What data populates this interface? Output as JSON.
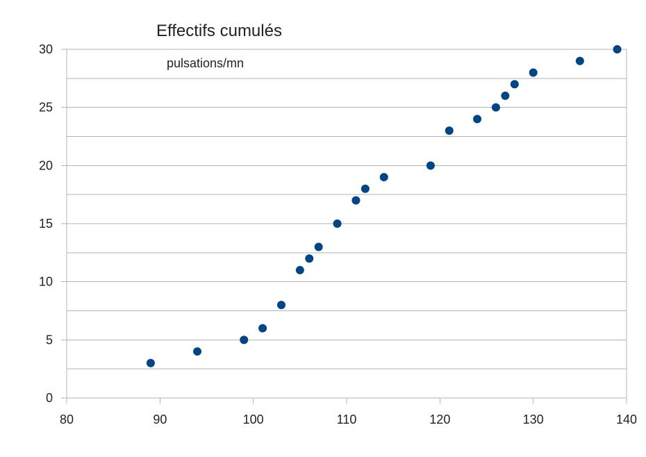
{
  "chart_data": {
    "type": "scatter",
    "title": "Effectifs cumulés",
    "annotation": "pulsations/mn",
    "xlabel": "",
    "ylabel": "",
    "xlim": [
      80,
      140
    ],
    "ylim": [
      0,
      30
    ],
    "xticks": [
      80,
      90,
      100,
      110,
      120,
      130,
      140
    ],
    "yticks": [
      0,
      5,
      10,
      15,
      20,
      25,
      30
    ],
    "grid": "horizontal",
    "legend": "none",
    "marker_color": "#004586",
    "grid_color": "#b3b3b3",
    "axis_color": "#b3b3b3",
    "points": [
      {
        "x": 89,
        "y": 3
      },
      {
        "x": 94,
        "y": 4
      },
      {
        "x": 99,
        "y": 5
      },
      {
        "x": 101,
        "y": 6
      },
      {
        "x": 103,
        "y": 8
      },
      {
        "x": 105,
        "y": 11
      },
      {
        "x": 106,
        "y": 12
      },
      {
        "x": 107,
        "y": 13
      },
      {
        "x": 109,
        "y": 15
      },
      {
        "x": 111,
        "y": 17
      },
      {
        "x": 112,
        "y": 18
      },
      {
        "x": 114,
        "y": 19
      },
      {
        "x": 119,
        "y": 20
      },
      {
        "x": 121,
        "y": 23
      },
      {
        "x": 124,
        "y": 24
      },
      {
        "x": 126,
        "y": 25
      },
      {
        "x": 127,
        "y": 26
      },
      {
        "x": 128,
        "y": 27
      },
      {
        "x": 130,
        "y": 28
      },
      {
        "x": 135,
        "y": 29
      },
      {
        "x": 139,
        "y": 30
      }
    ]
  }
}
